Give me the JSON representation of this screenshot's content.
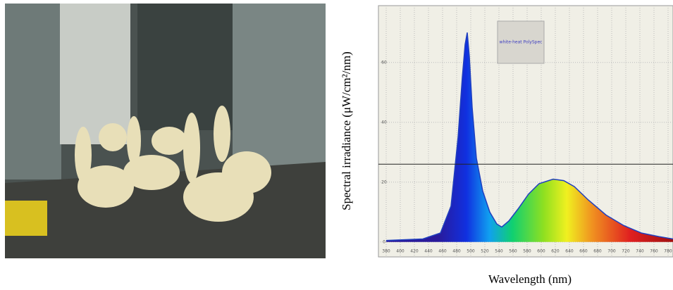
{
  "chart_data": {
    "type": "area",
    "y_label": "Spectral irradiance (μW/cm²/nm)",
    "x_label": "Wavelength (nm)",
    "legend_text": "white-heat PolySpec",
    "x": [
      380,
      432,
      457,
      472,
      482,
      488,
      492,
      495,
      498,
      502,
      508,
      517,
      527,
      537,
      544,
      554,
      567,
      582,
      597,
      617,
      632,
      647,
      667,
      692,
      717,
      742,
      767,
      787
    ],
    "values": [
      0.5,
      1,
      3,
      12,
      35,
      55,
      66,
      70,
      62,
      45,
      28,
      17,
      10,
      6,
      5,
      7,
      11,
      16,
      19.5,
      21,
      20.5,
      18.5,
      14,
      9,
      5.5,
      3,
      1.8,
      1
    ],
    "color": "#1f3fbf",
    "reference_line": 26,
    "xlim": [
      369,
      787
    ],
    "ylim": [
      -5,
      79
    ],
    "xticks": [
      380,
      400,
      420,
      440,
      460,
      480,
      500,
      520,
      540,
      560,
      580,
      600,
      620,
      640,
      660,
      680,
      700,
      720,
      740,
      760,
      780
    ],
    "yticks": [
      0,
      20,
      40,
      60
    ],
    "grid": true
  }
}
